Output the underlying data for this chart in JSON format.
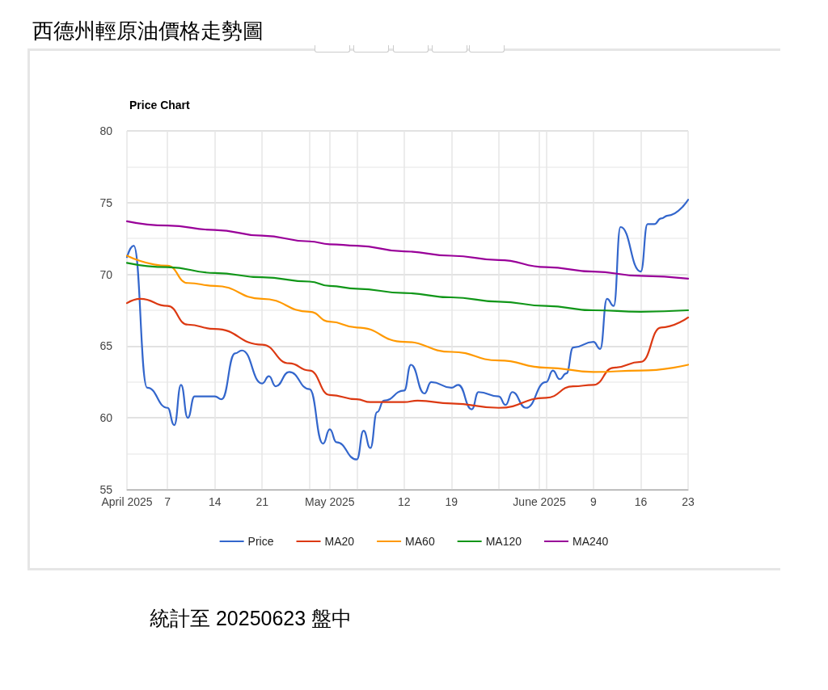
{
  "chart_data": {
    "type": "line",
    "title": "西德州輕原油價格走勢圖",
    "subtitle": "Price Chart",
    "annotations": [
      "統計至 20250623 盤中"
    ],
    "xlim": [
      "2025-04-01",
      "2025-06-23"
    ],
    "xticks": [
      {
        "value": "2025-04-01",
        "label": "April 2025"
      },
      {
        "value": "2025-04-07",
        "label": "7"
      },
      {
        "value": "2025-04-14",
        "label": "14"
      },
      {
        "value": "2025-04-21",
        "label": "21"
      },
      {
        "value": "2025-04-28",
        "label": null
      },
      {
        "value": "2025-05-01",
        "label": "May 2025"
      },
      {
        "value": "2025-05-05",
        "label": null
      },
      {
        "value": "2025-05-12",
        "label": "12"
      },
      {
        "value": "2025-05-19",
        "label": "19"
      },
      {
        "value": "2025-05-26",
        "label": null
      },
      {
        "value": "2025-06-01",
        "label": "June 2025"
      },
      {
        "value": "2025-06-02",
        "label": null
      },
      {
        "value": "2025-06-09",
        "label": "9"
      },
      {
        "value": "2025-06-16",
        "label": "16"
      },
      {
        "value": "2025-06-23",
        "label": "23"
      }
    ],
    "ylim": [
      55,
      80
    ],
    "yticks": [
      55,
      60,
      65,
      70,
      75,
      80
    ],
    "grid": true,
    "legend": "bottom",
    "marker": "none",
    "line_style": "solid",
    "series": [
      {
        "name": "Price",
        "color": "#3366cc",
        "x": [
          "2025-04-01",
          "2025-04-02",
          "2025-04-04",
          "2025-04-07",
          "2025-04-08",
          "2025-04-09",
          "2025-04-10",
          "2025-04-11",
          "2025-04-14",
          "2025-04-15",
          "2025-04-17",
          "2025-04-18",
          "2025-04-21",
          "2025-04-22",
          "2025-04-23",
          "2025-04-25",
          "2025-04-28",
          "2025-04-30",
          "2025-05-01",
          "2025-05-02",
          "2025-05-05",
          "2025-05-06",
          "2025-05-07",
          "2025-05-08",
          "2025-05-09",
          "2025-05-12",
          "2025-05-13",
          "2025-05-15",
          "2025-05-16",
          "2025-05-19",
          "2025-05-20",
          "2025-05-22",
          "2025-05-23",
          "2025-05-26",
          "2025-05-27",
          "2025-05-28",
          "2025-05-30",
          "2025-06-02",
          "2025-06-03",
          "2025-06-04",
          "2025-06-05",
          "2025-06-06",
          "2025-06-09",
          "2025-06-10",
          "2025-06-11",
          "2025-06-12",
          "2025-06-13",
          "2025-06-16",
          "2025-06-17",
          "2025-06-18",
          "2025-06-19",
          "2025-06-20",
          "2025-06-23"
        ],
        "values": [
          71.2,
          72.0,
          62.1,
          60.7,
          59.5,
          62.3,
          60.0,
          61.5,
          61.5,
          61.3,
          64.5,
          64.7,
          62.4,
          62.9,
          62.2,
          63.2,
          62.0,
          58.2,
          59.2,
          58.3,
          57.1,
          59.1,
          57.9,
          60.4,
          61.2,
          61.9,
          63.7,
          61.7,
          62.5,
          62.1,
          62.3,
          60.6,
          61.8,
          61.5,
          60.9,
          61.8,
          60.7,
          62.5,
          63.3,
          62.7,
          63.1,
          64.9,
          65.3,
          64.8,
          68.3,
          67.8,
          73.3,
          70.2,
          73.5,
          73.5,
          73.9,
          74.1,
          75.2
        ]
      },
      {
        "name": "MA20",
        "color": "#dc3912",
        "x": [
          "2025-04-01",
          "2025-04-03",
          "2025-04-07",
          "2025-04-10",
          "2025-04-14",
          "2025-04-21",
          "2025-04-25",
          "2025-04-28",
          "2025-05-01",
          "2025-05-05",
          "2025-05-07",
          "2025-05-12",
          "2025-05-14",
          "2025-05-19",
          "2025-05-26",
          "2025-06-02",
          "2025-06-06",
          "2025-06-09",
          "2025-06-12",
          "2025-06-16",
          "2025-06-19",
          "2025-06-23"
        ],
        "values": [
          68.0,
          68.3,
          67.8,
          66.5,
          66.2,
          65.1,
          63.8,
          63.3,
          61.6,
          61.3,
          61.1,
          61.1,
          61.2,
          61.0,
          60.7,
          61.4,
          62.2,
          62.3,
          63.5,
          63.9,
          66.3,
          67.0
        ]
      },
      {
        "name": "MA60",
        "color": "#ff9900",
        "x": [
          "2025-04-01",
          "2025-04-07",
          "2025-04-10",
          "2025-04-14",
          "2025-04-21",
          "2025-04-28",
          "2025-05-01",
          "2025-05-05",
          "2025-05-12",
          "2025-05-19",
          "2025-05-26",
          "2025-06-02",
          "2025-06-09",
          "2025-06-16",
          "2025-06-23"
        ],
        "values": [
          71.3,
          70.6,
          69.4,
          69.2,
          68.3,
          67.4,
          66.7,
          66.3,
          65.3,
          64.6,
          64.0,
          63.5,
          63.2,
          63.3,
          63.7
        ]
      },
      {
        "name": "MA120",
        "color": "#109618",
        "x": [
          "2025-04-01",
          "2025-04-07",
          "2025-04-14",
          "2025-04-21",
          "2025-04-28",
          "2025-05-01",
          "2025-05-05",
          "2025-05-12",
          "2025-05-19",
          "2025-05-26",
          "2025-06-02",
          "2025-06-09",
          "2025-06-16",
          "2025-06-23"
        ],
        "values": [
          70.8,
          70.5,
          70.1,
          69.8,
          69.5,
          69.2,
          69.0,
          68.7,
          68.4,
          68.1,
          67.8,
          67.5,
          67.4,
          67.5
        ]
      },
      {
        "name": "MA240",
        "color": "#990099",
        "x": [
          "2025-04-01",
          "2025-04-07",
          "2025-04-14",
          "2025-04-21",
          "2025-04-28",
          "2025-05-01",
          "2025-05-05",
          "2025-05-12",
          "2025-05-19",
          "2025-05-26",
          "2025-06-02",
          "2025-06-09",
          "2025-06-16",
          "2025-06-23"
        ],
        "values": [
          73.7,
          73.4,
          73.1,
          72.7,
          72.3,
          72.1,
          72.0,
          71.6,
          71.3,
          71.0,
          70.5,
          70.2,
          69.9,
          69.7
        ]
      }
    ]
  }
}
